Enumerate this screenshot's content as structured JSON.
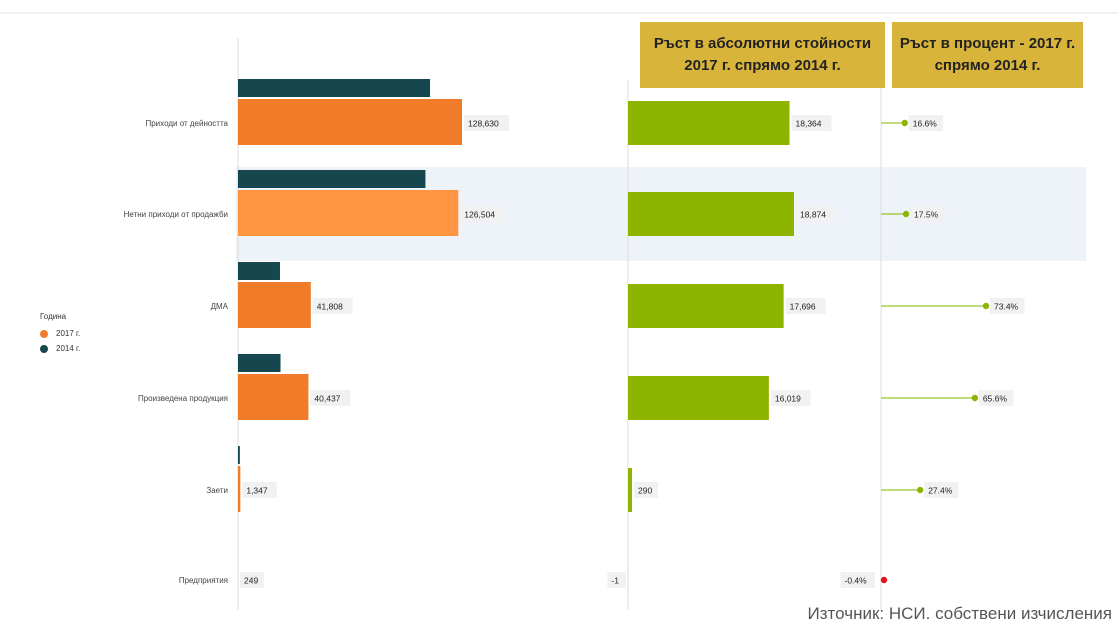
{
  "headers": {
    "absolute": "Ръст в абсолютни стойности\n2017 г. спрямо 2014 г.",
    "percent": "Ръст в процент - 2017 г.\nспрямо 2014 г."
  },
  "legend": {
    "title": "Година",
    "items": [
      {
        "label": "2017 г.",
        "color": "#f07c2a"
      },
      {
        "label": "2014 г.",
        "color": "#16474f"
      }
    ]
  },
  "source": "Източник: НСИ. собствени изчисления",
  "colors": {
    "bar2017": "#f07c2a",
    "bar2017_highlight": "#ff9540",
    "bar2014": "#16474f",
    "growth": "#8db500",
    "negative": "#e3121b",
    "highlight_band": "#eef2f9"
  },
  "chart_data": {
    "type": "bar",
    "categories": [
      "Приходи от дейността",
      "Нетни приходи от продажби",
      "ДМА",
      "Произведена продукция",
      "Заети",
      "Предприятия"
    ],
    "highlighted_category": "Нетни приходи от продажби",
    "series": [
      {
        "name": "2017 г.",
        "values": [
          128630,
          126504,
          41808,
          40437,
          1347,
          249
        ]
      },
      {
        "name": "2014 г.",
        "values": [
          110266,
          107630,
          24112,
          24418,
          1057,
          250
        ]
      }
    ],
    "value_labels": [
      "128,630",
      "126,504",
      "41,808",
      "40,437",
      "1,347",
      "249"
    ],
    "growth_absolute": {
      "values": [
        18364,
        18874,
        17696,
        16019,
        290,
        -1
      ],
      "labels": [
        "18,364",
        "18,874",
        "17,696",
        "16,019",
        "290",
        "-1"
      ]
    },
    "growth_percent": {
      "values": [
        16.6,
        17.5,
        73.4,
        65.6,
        27.4,
        -0.4
      ],
      "labels": [
        "16.6%",
        "17.5%",
        "73.4%",
        "65.6%",
        "27.4%",
        "-0.4%"
      ]
    }
  }
}
